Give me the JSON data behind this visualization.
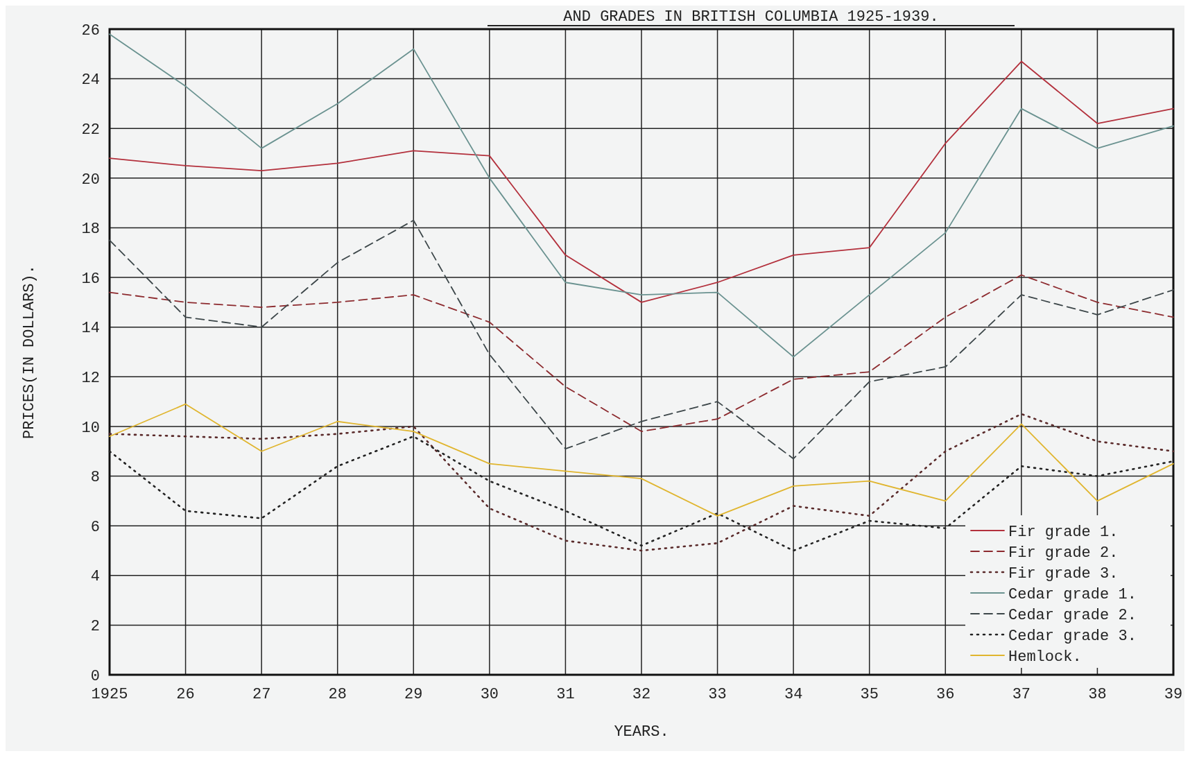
{
  "chart_data": {
    "type": "line",
    "title": "AND GRADES IN BRITISH COLUMBIA 1925-1939.",
    "xlabel": "YEARS.",
    "ylabel": "PRICES(IN DOLLARS).",
    "x": [
      1925,
      1926,
      1927,
      1928,
      1929,
      1930,
      1931,
      1932,
      1933,
      1934,
      1935,
      1936,
      1937,
      1938,
      1939
    ],
    "xlim": [
      1925,
      1939
    ],
    "xticks": [
      1925,
      {
        "value": 1926,
        "label": "26"
      },
      {
        "value": 1927,
        "label": "27"
      },
      {
        "value": 1928,
        "label": "28"
      },
      {
        "value": 1929,
        "label": "29"
      },
      {
        "value": 1930,
        "label": "30"
      },
      {
        "value": 1931,
        "label": "31"
      },
      {
        "value": 1932,
        "label": "32"
      },
      {
        "value": 1933,
        "label": "33"
      },
      {
        "value": 1934,
        "label": "34"
      },
      {
        "value": 1935,
        "label": "35"
      },
      {
        "value": 1936,
        "label": "36"
      },
      {
        "value": 1937,
        "label": "37"
      },
      {
        "value": 1938,
        "label": "38"
      },
      {
        "value": 1939,
        "label": "39"
      }
    ],
    "ylim": [
      0,
      26
    ],
    "yticks": [
      0,
      2,
      4,
      6,
      8,
      10,
      12,
      14,
      16,
      18,
      20,
      22,
      24,
      26
    ],
    "grid": true,
    "legend": "bottom right",
    "series": [
      {
        "name": "Fir grade 1.",
        "color": "#b3303c",
        "line_style": "solid",
        "values": [
          20.8,
          20.5,
          20.3,
          20.6,
          21.1,
          20.9,
          16.9,
          15.0,
          15.8,
          16.9,
          17.2,
          21.4,
          24.7,
          22.2,
          22.8
        ]
      },
      {
        "name": "Fir grade 2.",
        "color": "#8c2a2e",
        "line_style": "dashed",
        "values": [
          15.4,
          15.0,
          14.8,
          15.0,
          15.3,
          14.2,
          11.6,
          9.8,
          10.3,
          11.9,
          12.2,
          14.4,
          16.1,
          15.0,
          14.4
        ]
      },
      {
        "name": "Fir grade 3.",
        "color": "#5a2a2a",
        "line_style": "dotted",
        "values": [
          9.7,
          9.6,
          9.5,
          9.7,
          10.0,
          6.7,
          5.4,
          5.0,
          5.3,
          6.8,
          6.4,
          9.0,
          10.5,
          9.4,
          9.0
        ]
      },
      {
        "name": "Cedar grade 1.",
        "color": "#6a9290",
        "line_style": "solid",
        "values": [
          25.8,
          23.7,
          21.2,
          23.0,
          25.2,
          20.0,
          15.8,
          15.3,
          15.4,
          12.8,
          15.3,
          17.8,
          22.8,
          21.2,
          22.1
        ]
      },
      {
        "name": "Cedar grade 2.",
        "color": "#3c4649",
        "line_style": "dashed",
        "values": [
          17.5,
          14.4,
          14.0,
          16.6,
          18.3,
          12.9,
          9.1,
          10.2,
          11.0,
          8.7,
          11.8,
          12.4,
          15.3,
          14.5,
          15.5
        ]
      },
      {
        "name": "Cedar grade 3.",
        "color": "#222222",
        "line_style": "dotted",
        "values": [
          9.0,
          6.6,
          6.3,
          8.4,
          9.6,
          7.8,
          6.6,
          5.2,
          6.5,
          5.0,
          6.2,
          5.9,
          8.4,
          8.0,
          8.6
        ]
      },
      {
        "name": "Hemlock.",
        "color": "#e0b52e",
        "line_style": "solid",
        "values": [
          9.6,
          10.9,
          9.0,
          10.2,
          9.8,
          8.5,
          8.2,
          7.9,
          6.4,
          7.6,
          7.8,
          7.0,
          10.1,
          7.0,
          8.5
        ]
      }
    ]
  }
}
